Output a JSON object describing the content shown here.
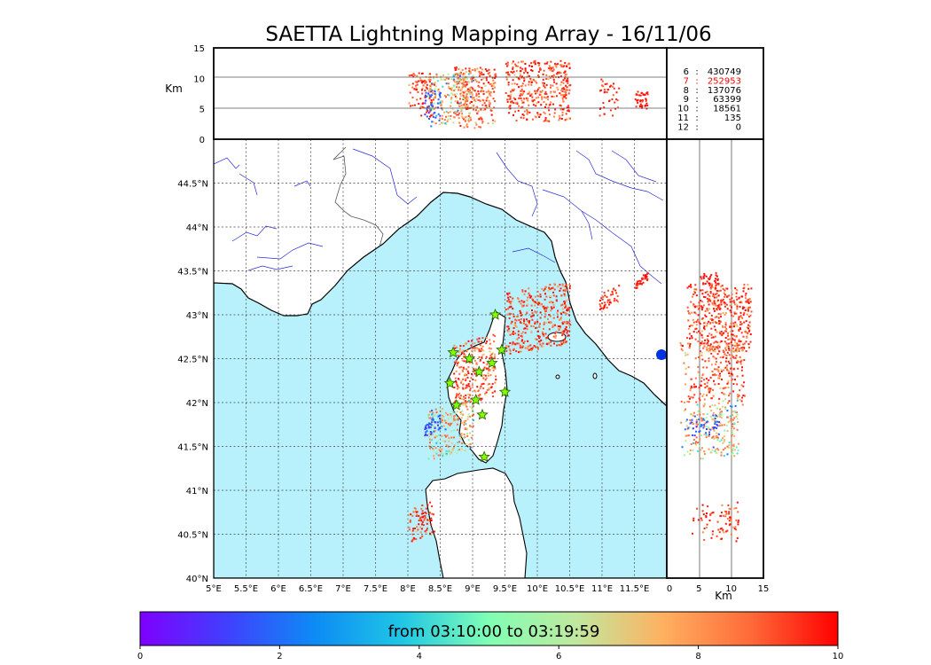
{
  "title": "SAETTA Lightning Mapping Array - 16/11/06",
  "chart_data": {
    "type": "scatter",
    "map": {
      "lon_range": [
        5.0,
        12.0
      ],
      "lat_range": [
        40.0,
        45.0
      ],
      "lon_ticks": [
        5.0,
        5.5,
        6.0,
        6.5,
        7.0,
        7.5,
        8.0,
        8.5,
        9.0,
        9.5,
        10.0,
        10.5,
        11.0,
        11.5
      ],
      "lon_tick_labels": [
        "5°E",
        "5.5°E",
        "6°E",
        "6.5°E",
        "7°E",
        "7.5°E",
        "8°E",
        "8.5°E",
        "9°E",
        "9.5°E",
        "10°E",
        "10.5°E",
        "11°E",
        "11.5°E"
      ],
      "lat_ticks": [
        40.0,
        40.5,
        41.0,
        41.5,
        42.0,
        42.5,
        43.0,
        43.5,
        44.0,
        44.5
      ],
      "lat_tick_labels": [
        "40°N",
        "40.5°N",
        "41°N",
        "41.5°N",
        "42°N",
        "42.5°N",
        "43°N",
        "43.5°N",
        "44°N",
        "44.5°N"
      ],
      "grid": "dotted"
    },
    "altitude_top": {
      "ylabel": "Km",
      "ylim": [
        0,
        15
      ],
      "y_ticks": [
        0,
        5,
        10,
        15
      ],
      "y_tick_labels": [
        "0",
        "5",
        "10",
        "15"
      ]
    },
    "altitude_right": {
      "xlabel": "Km",
      "xlim": [
        0,
        15
      ],
      "x_ticks": [
        0,
        5,
        10,
        15
      ],
      "x_tick_labels": [
        "0",
        "5",
        "10",
        "15"
      ]
    },
    "station_counts": [
      {
        "stations": "6",
        "count": "430749",
        "color": "#000000"
      },
      {
        "stations": "7",
        "count": "252953",
        "color": "#ff0000"
      },
      {
        "stations": "8",
        "count": "137076",
        "color": "#000000"
      },
      {
        "stations": "9",
        "count": "63399",
        "color": "#000000"
      },
      {
        "stations": "10",
        "count": "18561",
        "color": "#000000"
      },
      {
        "stations": "11",
        "count": "135",
        "color": "#000000"
      },
      {
        "stations": "12",
        "count": "0",
        "color": "#000000"
      }
    ],
    "stations_lonlat": [
      [
        9.35,
        43.0
      ],
      [
        8.7,
        42.57
      ],
      [
        9.45,
        42.6
      ],
      [
        8.95,
        42.5
      ],
      [
        9.3,
        42.45
      ],
      [
        9.1,
        42.35
      ],
      [
        8.65,
        42.22
      ],
      [
        9.5,
        42.12
      ],
      [
        9.05,
        42.03
      ],
      [
        8.75,
        41.97
      ],
      [
        9.15,
        41.86
      ],
      [
        9.18,
        41.38
      ]
    ],
    "storm_clusters": [
      {
        "lon": [
          9.5,
          10.5
        ],
        "lat": [
          42.6,
          43.35
        ],
        "alt": [
          3,
          13
        ],
        "time_min": [
          6,
          10
        ]
      },
      {
        "lon": [
          8.7,
          9.35
        ],
        "lat": [
          42.0,
          42.75
        ],
        "alt": [
          2,
          12
        ],
        "time_min": [
          5,
          10
        ]
      },
      {
        "lon": [
          8.3,
          9.0
        ],
        "lat": [
          41.4,
          42.0
        ],
        "alt": [
          2,
          11
        ],
        "time_min": [
          0,
          9
        ]
      },
      {
        "lon": [
          8.0,
          8.4
        ],
        "lat": [
          40.45,
          40.85
        ],
        "alt": [
          3,
          11
        ],
        "time_min": [
          7,
          10
        ]
      },
      {
        "lon": [
          10.95,
          11.25
        ],
        "lat": [
          43.1,
          43.3
        ],
        "alt": [
          4,
          10
        ],
        "time_min": [
          8,
          10
        ]
      },
      {
        "lon": [
          11.5,
          11.7
        ],
        "lat": [
          43.35,
          43.45
        ],
        "alt": [
          5,
          8
        ],
        "time_min": [
          9,
          10
        ]
      },
      {
        "lon": [
          8.25,
          8.5
        ],
        "lat": [
          41.65,
          41.85
        ],
        "alt": [
          3,
          8
        ],
        "time_min": [
          0,
          2
        ]
      }
    ],
    "colorbar": {
      "label": "from 03:10:00 to 03:19:59",
      "ticks": [
        0,
        2,
        4,
        6,
        8,
        10
      ],
      "tick_labels": [
        "0",
        "2",
        "4",
        "6",
        "8",
        "10"
      ],
      "colormap": "rainbow",
      "range": [
        0,
        10
      ]
    }
  },
  "colors": {
    "sea": "#b8f0fc",
    "coast": "#000000",
    "rivers": "#0000cc",
    "borders": "#555555",
    "station_fill": "#7fff00",
    "station_edge": "#2a5a00",
    "dominant_point": "#ff4a24"
  }
}
